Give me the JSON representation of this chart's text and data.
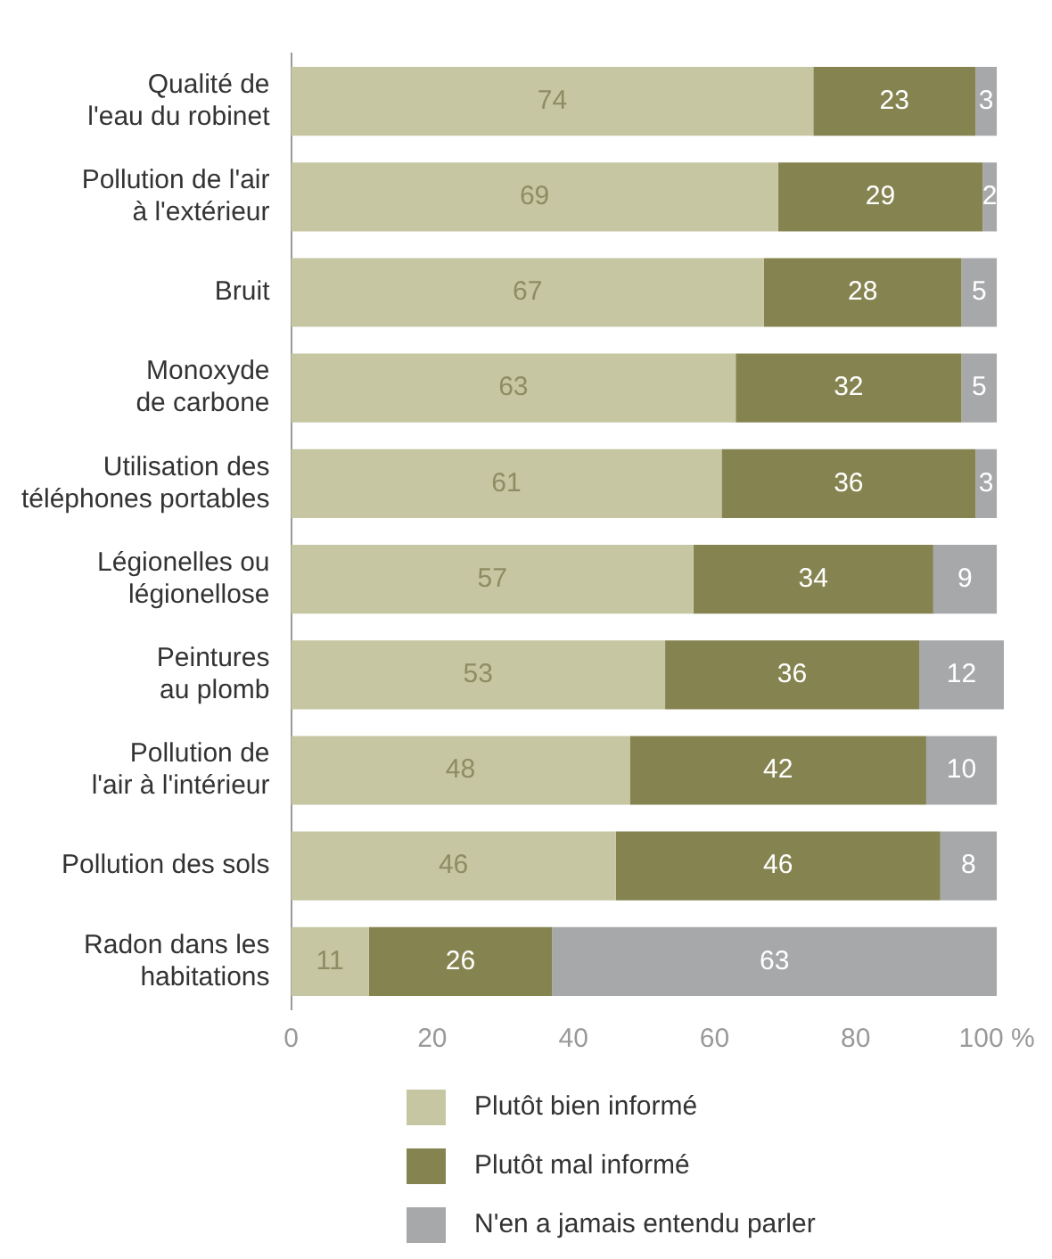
{
  "chart_data": {
    "type": "bar",
    "orientation": "horizontal",
    "stacked": true,
    "grid": false,
    "legend": "bottom",
    "data_labels": true,
    "categories": [
      "Qualité de\nl'eau du robinet",
      "Pollution de l'air\nà l'extérieur",
      "Bruit",
      "Monoxyde\nde carbone",
      "Utilisation des\ntéléphones portables",
      "Légionelles ou\nlégionellose",
      "Peintures\nau plomb",
      "Pollution de\nl'air à l'intérieur",
      "Pollution des sols",
      "Radon dans les\nhabitations"
    ],
    "series": [
      {
        "name": "Plutôt bien informé",
        "color": "#c6c6a2",
        "values": [
          74,
          69,
          67,
          63,
          61,
          57,
          53,
          48,
          46,
          11
        ]
      },
      {
        "name": "Plutôt mal informé",
        "color": "#858451",
        "values": [
          23,
          29,
          28,
          32,
          36,
          34,
          36,
          42,
          46,
          26
        ]
      },
      {
        "name": "N'en a jamais entendu parler",
        "color": "#a7a8aa",
        "values": [
          3,
          2,
          5,
          5,
          3,
          9,
          12,
          10,
          8,
          63
        ]
      }
    ],
    "xlim": [
      0,
      101
    ],
    "xticks": [
      0,
      20,
      40,
      60,
      80,
      {
        "value": 100,
        "label": "100 %"
      }
    ]
  }
}
